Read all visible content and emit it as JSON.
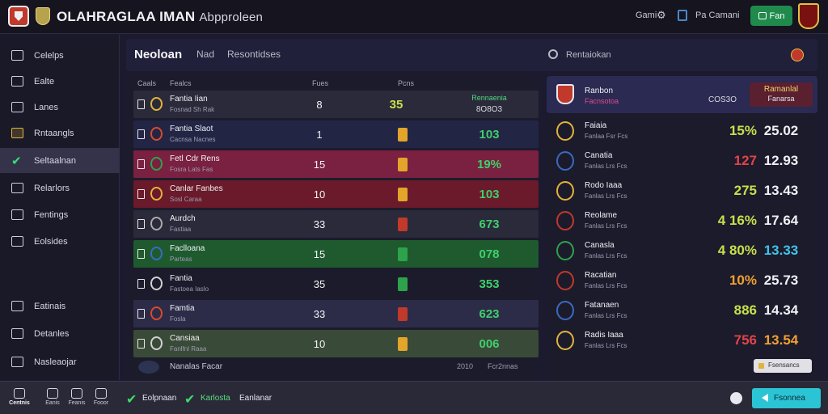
{
  "topbar": {
    "title_main": "OLAHRAGLAA IMAN",
    "title_sub": "Abpproleen",
    "game_link": "Gami",
    "link2": "Pa Camani",
    "green_button": "Fan",
    "icons": [
      "club-shield-icon",
      "badge-icon",
      "gear-icon",
      "card-icon",
      "club-crest-icon"
    ]
  },
  "sidebar": {
    "items_top": [
      {
        "label": "Celelps",
        "icon": "folder-icon"
      },
      {
        "label": "Ealte",
        "icon": "calendar-icon"
      },
      {
        "label": "Lanes",
        "icon": "list-icon"
      },
      {
        "label": "Rntaangls",
        "icon": "trophy-icon"
      },
      {
        "label": "Seltaalnan",
        "icon": "check-icon",
        "active": true
      },
      {
        "label": "Relarlors",
        "icon": "chart-icon"
      },
      {
        "label": "Fentings",
        "icon": "trend-icon"
      },
      {
        "label": "Eolsides",
        "icon": "chat-icon"
      }
    ],
    "items_bottom": [
      {
        "label": "Eatinais",
        "icon": "home-icon"
      },
      {
        "label": "Detanles",
        "icon": "shield-icon"
      },
      {
        "label": "Nasleaojar",
        "icon": "person-icon"
      }
    ]
  },
  "header": {
    "tabs": [
      "Neoloan",
      "Nad",
      "Resontidses"
    ],
    "search_label": "Rentaiokan"
  },
  "table": {
    "columns": [
      "Caals",
      "Fealcs",
      "Fues",
      "Pcns"
    ],
    "rows": [
      {
        "name": "Fantia Iian",
        "sub": "Fosnad Sh Rak",
        "num": "8",
        "pct": "35",
        "pct_top": "Rennaenia",
        "pct_bot": "8O8O3",
        "bg": "#2a2a3a",
        "chip": "",
        "pct_color": "#c6e04a",
        "crest": "#e2b33a"
      },
      {
        "name": "Fantia Slaot",
        "sub": "Cacnsa Nacnes",
        "num": "1",
        "pct": "103",
        "bg": "#232545",
        "chip": "#e2a52a",
        "pct_color": "#3ed06a",
        "crest": "#d84a2a"
      },
      {
        "name": "Fetl Cdr Rens",
        "sub": "Fosra Lats Fas",
        "num": "15",
        "pct": "19%",
        "bg": "#7a2040",
        "chip": "#e2a52a",
        "pct_color": "#3ed06a",
        "crest": "#2ea24a"
      },
      {
        "name": "Canlar Fanbes",
        "sub": "Sosl Caraa",
        "num": "10",
        "pct": "103",
        "bg": "#6a1a2a",
        "chip": "#e2a52a",
        "pct_color": "#3ed06a",
        "crest": "#e2b33a"
      },
      {
        "name": "Aurdch",
        "sub": "Fastiaa",
        "num": "33",
        "pct": "673",
        "bg": "#2a2a3a",
        "chip": "#c0392b",
        "pct_color": "#3ed06a",
        "crest": "#aaaaaa"
      },
      {
        "name": "Faclloana",
        "sub": "Parteas",
        "num": "15",
        "pct": "078",
        "bg": "#1f5a2f",
        "chip": "#2ea24a",
        "pct_color": "#3ed06a",
        "crest": "#3a6ac0"
      },
      {
        "name": "Fantia",
        "sub": "Fastoea Iaslo",
        "num": "35",
        "pct": "353",
        "bg": "#1c1b2c",
        "chip": "#2ea24a",
        "pct_color": "#3ed06a",
        "crest": "#d0d0d0"
      },
      {
        "name": "Famtia",
        "sub": "Fosla",
        "num": "33",
        "pct": "623",
        "bg": "#2d2c48",
        "chip": "#c0392b",
        "pct_color": "#3ed06a",
        "crest": "#d84a2a"
      },
      {
        "name": "Cansiaa",
        "sub": "Fanlfnl Raaa",
        "num": "10",
        "pct": "006",
        "bg": "#3a4a38",
        "chip": "#e2a52a",
        "pct_color": "#3ed06a",
        "crest": "#d0d0d0"
      }
    ],
    "footer": {
      "text": "Nanalas Facar",
      "a": "2010",
      "b": "Fcr2nnas"
    }
  },
  "right_panel": {
    "head": {
      "name": "Ranbon",
      "sub": "Facnsotoa",
      "mid": "COS3O",
      "tag_top": "Ramanlal",
      "tag_bot": "Fanarsa"
    },
    "rows": [
      {
        "name": "Faiaia",
        "sub": "Fanlaa Fsr Fcs",
        "v1": "15%",
        "v1_color": "#c6e04a",
        "v2": "25.02",
        "v2_color": "#f0f0f4",
        "crest": "#e2b33a"
      },
      {
        "name": "Canatia",
        "sub": "Fanlas Lrs Fcs",
        "v1": "127",
        "v1_color": "#e0444a",
        "v2": "12.93",
        "v2_color": "#f0f0f4",
        "crest": "#3a6ac0"
      },
      {
        "name": "Rodo Iaaa",
        "sub": "Fanlas Lrs Fcs",
        "v1": "275",
        "v1_color": "#c6e04a",
        "v2": "13.43",
        "v2_color": "#f0f0f4",
        "crest": "#e2b33a"
      },
      {
        "name": "Reolame",
        "sub": "Fanlas Lrs Fcs",
        "v1": "4 16%",
        "v1_color": "#c6e04a",
        "v2": "17.64",
        "v2_color": "#f0f0f4",
        "crest": "#c0392b"
      },
      {
        "name": "Canasla",
        "sub": "Fanlas Lrs Fcs",
        "v1": "4 80%",
        "v1_color": "#c6e04a",
        "v2": "13.33",
        "v2_color": "#3fc4e8",
        "crest": "#2ea24a"
      },
      {
        "name": "Racatian",
        "sub": "Fanlas Lrs Fcs",
        "v1": "10%",
        "v1_color": "#f0a030",
        "v2": "25.73",
        "v2_color": "#f0f0f4",
        "crest": "#c0392b"
      },
      {
        "name": "Fatanaen",
        "sub": "Fanlas Lrs Fcs",
        "v1": "886",
        "v1_color": "#c6e04a",
        "v2": "14.34",
        "v2_color": "#f0f0f4",
        "crest": "#3a6ac0"
      },
      {
        "name": "Radis Iaaa",
        "sub": "Fanlas Lrs Fcs",
        "v1": "756",
        "v1_color": "#e0444a",
        "v2": "13.54",
        "v2_color": "#f0a030",
        "crest": "#e2b33a"
      }
    ],
    "pill": "Fsensancs"
  },
  "bottombar": {
    "items": [
      "Centnis",
      "Eanis",
      "Feanis",
      "Fooor"
    ],
    "status1": "Eolpnaan",
    "status2": "Karlosta",
    "status3": "Eanlanar",
    "cta": "Fsonnea"
  }
}
